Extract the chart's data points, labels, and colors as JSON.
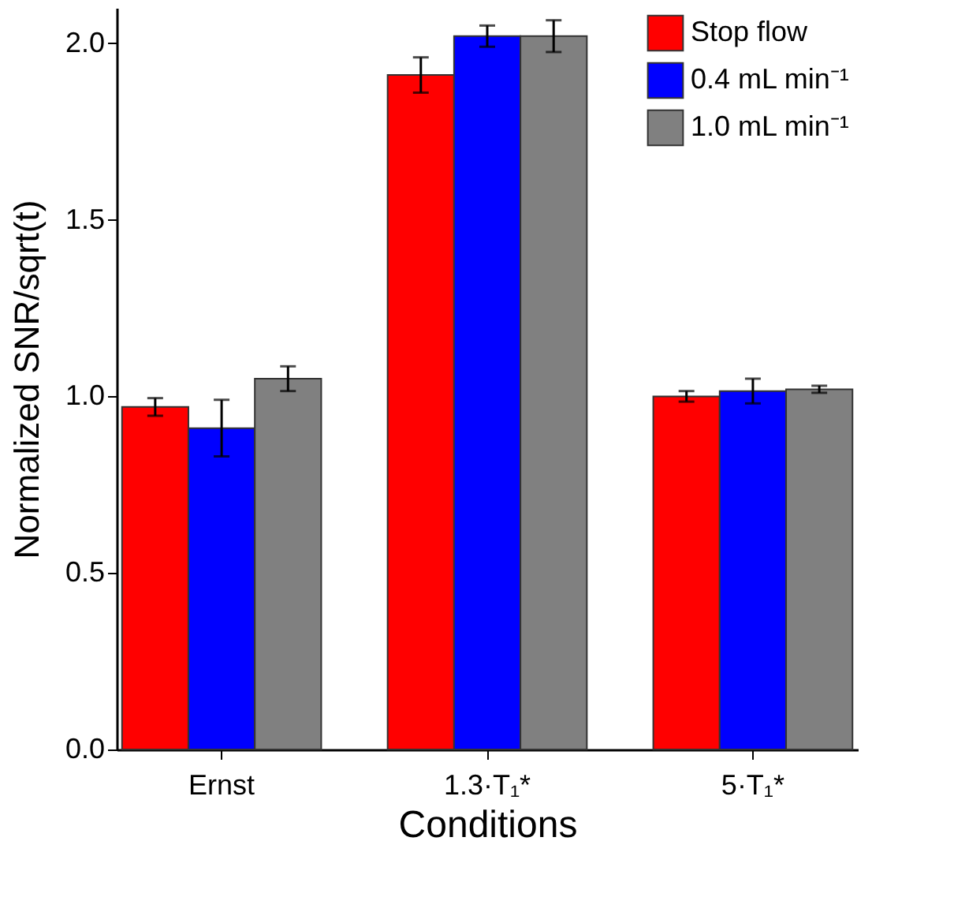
{
  "chart_data": {
    "type": "bar",
    "xlabel": "Conditions",
    "ylabel": "Normalized SNR/sqrt(t)",
    "categories": [
      "Ernst",
      "1.3·T₁*",
      "5·T₁*"
    ],
    "series": [
      {
        "name": "Stop flow",
        "color": "#ff0000",
        "values": [
          0.97,
          1.91,
          1.0
        ],
        "errors": [
          0.025,
          0.05,
          0.015
        ]
      },
      {
        "name": "0.4 mL min⁻¹",
        "color": "#0000ff",
        "values": [
          0.91,
          2.02,
          1.015
        ],
        "errors": [
          0.08,
          0.03,
          0.035
        ]
      },
      {
        "name": "1.0 mL min⁻¹",
        "color": "#808080",
        "values": [
          1.05,
          2.02,
          1.02
        ],
        "errors": [
          0.035,
          0.045,
          0.01
        ]
      }
    ],
    "ylim": [
      0,
      2.1
    ],
    "yticks": [
      {
        "value": 0,
        "label": "0.0"
      },
      0.5,
      {
        "value": 1,
        "label": "1.0"
      },
      1.5,
      {
        "value": 2,
        "label": "2.0"
      }
    ],
    "grid": false,
    "legend": "top right"
  }
}
